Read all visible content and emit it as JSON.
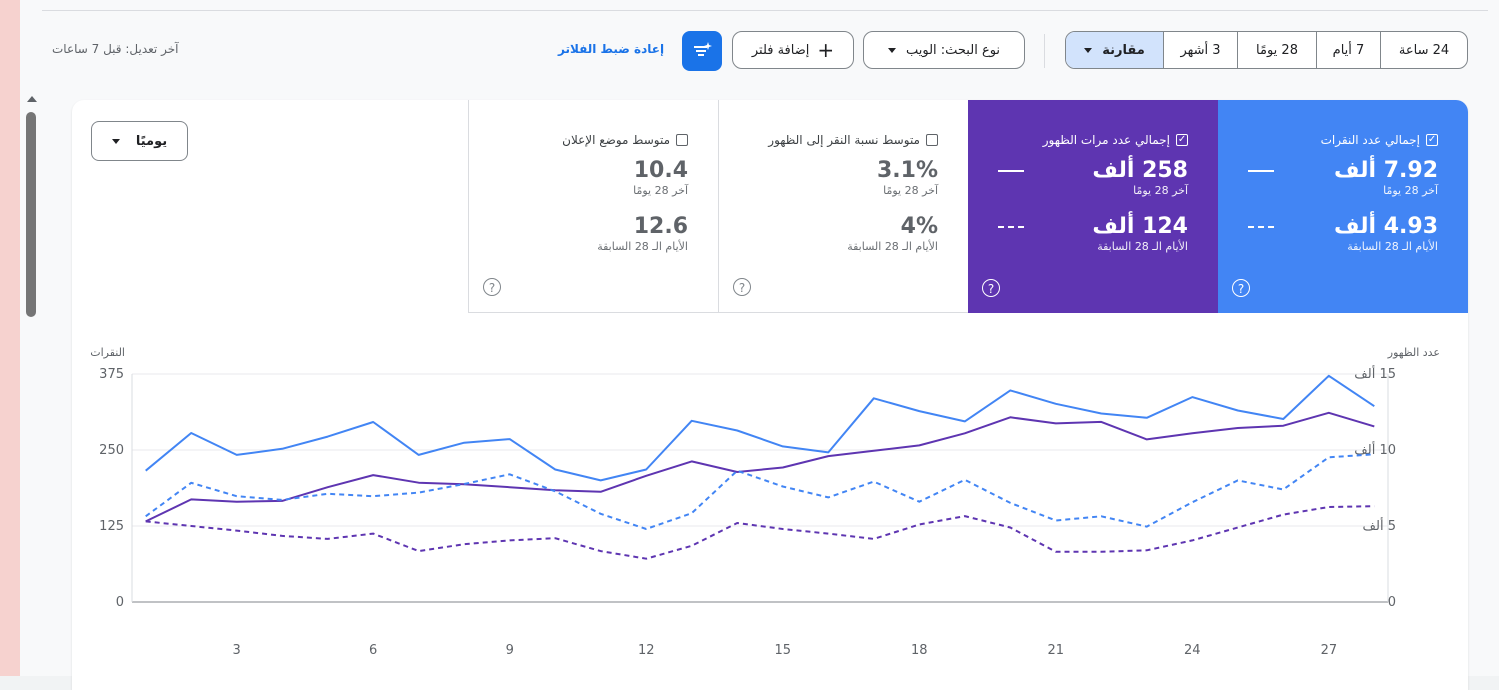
{
  "toolbar": {
    "last_edit": "آخر تعديل: قبل 7 ساعات",
    "reset_filters": "إعادة ضبط الفلاتر",
    "add_filter": "إضافة فلتر",
    "search_type": "نوع البحث: الويب",
    "ranges": [
      "24 ساعة",
      "7 أيام",
      "28 يومًا",
      "3 أشهر",
      "مقارنة"
    ],
    "selected_range": "مقارنة"
  },
  "granularity": "يوميًا",
  "metrics": [
    {
      "label": "إجمالي عدد النقرات",
      "checked": true,
      "current": "7.92 ألف",
      "current_caption": "آخر 28 يومًا",
      "previous": "4.93 ألف",
      "previous_caption": "الأيام الـ 28 السابقة",
      "color": "#4285f4"
    },
    {
      "label": "إجمالي عدد مرات الظهور",
      "checked": true,
      "current": "258 ألف",
      "current_caption": "آخر 28 يومًا",
      "previous": "124 ألف",
      "previous_caption": "الأيام الـ 28 السابقة",
      "color": "#5e35b1"
    },
    {
      "label": "متوسط نسبة النقر إلى الظهور",
      "checked": false,
      "current": "3.1%",
      "current_caption": "آخر 28 يومًا",
      "previous": "4%",
      "previous_caption": "الأيام الـ 28 السابقة",
      "color": "#ffffff"
    },
    {
      "label": "متوسط موضع الإعلان",
      "checked": false,
      "current": "10.4",
      "current_caption": "آخر 28 يومًا",
      "previous": "12.6",
      "previous_caption": "الأيام الـ 28 السابقة",
      "color": "#ffffff"
    }
  ],
  "chart_data": {
    "type": "line",
    "ylabel_left": "النقرات",
    "ylabel_right": "عدد الظهور",
    "ylim_left": [
      0,
      375
    ],
    "ylim_right": [
      0,
      15000
    ],
    "yticks_left": [
      "0",
      "125",
      "250",
      "375"
    ],
    "yticks_right": [
      "0",
      "5 ألف",
      "10 ألف",
      "15 ألف"
    ],
    "x": [
      1,
      2,
      3,
      4,
      5,
      6,
      7,
      8,
      9,
      10,
      11,
      12,
      13,
      14,
      15,
      16,
      17,
      18,
      19,
      20,
      21,
      22,
      23,
      24,
      25,
      26,
      27,
      28
    ],
    "xticks": [
      "3",
      "6",
      "9",
      "12",
      "15",
      "18",
      "21",
      "24",
      "27"
    ],
    "series": [
      {
        "name": "",
        "axis": "left",
        "style": "solid",
        "color": "#4285f4",
        "values": [
          216,
          278,
          242,
          252,
          272,
          296,
          242,
          262,
          268,
          218,
          200,
          218,
          298,
          282,
          256,
          246,
          335,
          314,
          297,
          348,
          326,
          310,
          303,
          337,
          315,
          301,
          372,
          322
        ]
      },
      {
        "name": "",
        "axis": "right",
        "style": "solid",
        "color": "#5e35b1",
        "values": [
          5300,
          6750,
          6600,
          6650,
          7550,
          8350,
          7850,
          7750,
          7550,
          7350,
          7250,
          8300,
          9250,
          8550,
          8850,
          9600,
          9950,
          10300,
          11100,
          12150,
          11750,
          11850,
          10700,
          11100,
          11450,
          11600,
          12450,
          11550
        ]
      },
      {
        "name": "",
        "axis": "left",
        "style": "dashed",
        "color": "#4285f4",
        "values": [
          141,
          196,
          174,
          168,
          178,
          174,
          180,
          194,
          210,
          182,
          145,
          120,
          146,
          216,
          190,
          172,
          198,
          165,
          201,
          163,
          134,
          141,
          124,
          164,
          200,
          185,
          238,
          243
        ]
      },
      {
        "name": "",
        "axis": "right",
        "style": "dashed",
        "color": "#5e35b1",
        "values": [
          5300,
          5000,
          4700,
          4350,
          4150,
          4500,
          3350,
          3800,
          4050,
          4200,
          3350,
          2850,
          3700,
          5200,
          4800,
          4500,
          4150,
          5100,
          5650,
          4900,
          3300,
          3300,
          3400,
          4050,
          4900,
          5750,
          6250,
          6300
        ]
      }
    ]
  }
}
